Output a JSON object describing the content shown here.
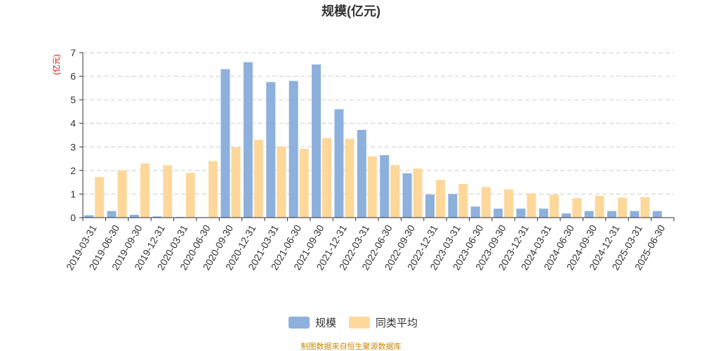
{
  "chart_data": {
    "type": "bar",
    "title": "规模(亿元)",
    "ylabel": "(亿元)",
    "xlabel": "",
    "ylim": [
      0,
      7
    ],
    "yticks": [
      0,
      1,
      2,
      3,
      4,
      5,
      6,
      7
    ],
    "grid": true,
    "legend_position": "bottom-center",
    "categories": [
      "2019-03-31",
      "2019-06-30",
      "2019-09-30",
      "2019-12-31",
      "2020-03-31",
      "2020-06-30",
      "2020-09-30",
      "2020-12-31",
      "2021-03-31",
      "2021-06-30",
      "2021-09-30",
      "2021-12-31",
      "2022-03-31",
      "2022-06-30",
      "2022-09-30",
      "2022-12-31",
      "2023-03-31",
      "2023-06-30",
      "2023-09-30",
      "2023-12-31",
      "2024-03-31",
      "2024-06-30",
      "2024-09-30",
      "2024-12-31",
      "2025-03-31",
      "2025-06-30"
    ],
    "series": [
      {
        "name": "规模",
        "color": "#8eb0dd",
        "values": [
          0.1,
          0.28,
          0.12,
          0.05,
          0.03,
          0.02,
          6.3,
          6.6,
          5.75,
          5.8,
          6.5,
          4.6,
          3.72,
          2.65,
          1.88,
          0.98,
          1.0,
          0.47,
          0.38,
          0.38,
          0.38,
          0.18,
          0.28,
          0.28,
          0.28,
          0.28
        ]
      },
      {
        "name": "同类平均",
        "color": "#fdd89a",
        "values": [
          1.72,
          2.0,
          2.3,
          2.22,
          1.9,
          2.4,
          2.98,
          3.3,
          3.02,
          2.92,
          3.38,
          3.35,
          2.6,
          2.23,
          2.08,
          1.6,
          1.43,
          1.3,
          1.2,
          1.03,
          0.97,
          0.83,
          0.93,
          0.85,
          0.87,
          null
        ]
      }
    ],
    "source": "制图数据来自恒生聚源数据库"
  }
}
